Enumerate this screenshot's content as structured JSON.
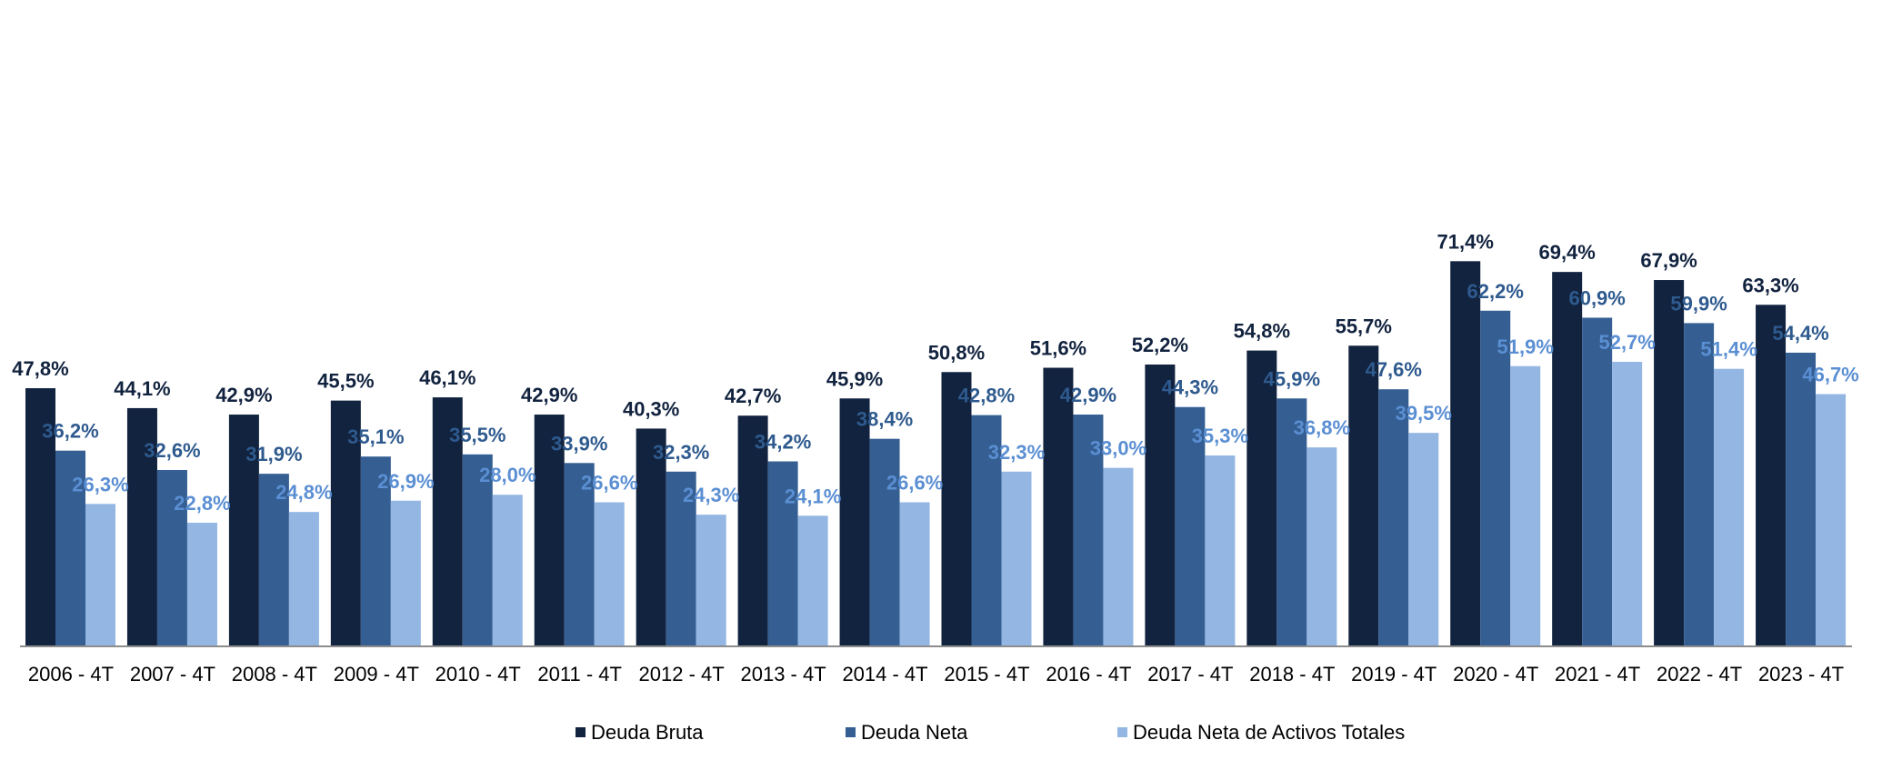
{
  "chart_data": {
    "type": "bar",
    "title": "",
    "xlabel": "",
    "ylabel": "",
    "ylim": [
      0,
      75
    ],
    "grid": false,
    "legend_position": "bottom",
    "categories": [
      "2006 - 4T",
      "2007 - 4T",
      "2008 - 4T",
      "2009 - 4T",
      "2010 - 4T",
      "2011 - 4T",
      "2012 - 4T",
      "2013 - 4T",
      "2014 - 4T",
      "2015 - 4T",
      "2016 - 4T",
      "2017 - 4T",
      "2018 - 4T",
      "2019 - 4T",
      "2020 - 4T",
      "2021 - 4T",
      "2022 - 4T",
      "2023 - 4T"
    ],
    "series": [
      {
        "name": "Deuda Bruta",
        "color": "#12233F",
        "label_color": "#12233F",
        "values": [
          47.8,
          44.1,
          42.9,
          45.5,
          46.1,
          42.9,
          40.3,
          42.7,
          45.9,
          50.8,
          51.6,
          52.2,
          54.8,
          55.7,
          71.4,
          69.4,
          67.9,
          63.3
        ],
        "labels": [
          "47,8%",
          "44,1%",
          "42,9%",
          "45,5%",
          "46,1%",
          "42,9%",
          "40,3%",
          "42,7%",
          "45,9%",
          "50,8%",
          "51,6%",
          "52,2%",
          "54,8%",
          "55,7%",
          "71,4%",
          "69,4%",
          "67,9%",
          "63,3%"
        ]
      },
      {
        "name": "Deuda Neta",
        "color": "#355F93",
        "label_color": "#2E5A8E",
        "values": [
          36.2,
          32.6,
          31.9,
          35.1,
          35.5,
          33.9,
          32.3,
          34.2,
          38.4,
          42.8,
          42.9,
          44.3,
          45.9,
          47.6,
          62.2,
          60.9,
          59.9,
          54.4
        ],
        "labels": [
          "36,2%",
          "32,6%",
          "31,9%",
          "35,1%",
          "35,5%",
          "33,9%",
          "32,3%",
          "34,2%",
          "38,4%",
          "42,8%",
          "42,9%",
          "44,3%",
          "45,9%",
          "47,6%",
          "62,2%",
          "60,9%",
          "59,9%",
          "54,4%"
        ]
      },
      {
        "name": "Deuda Neta de Activos Totales",
        "color": "#93B6E3",
        "label_color": "#5B8FD3",
        "values": [
          26.3,
          22.8,
          24.8,
          26.9,
          28.0,
          26.6,
          24.3,
          24.1,
          26.6,
          32.3,
          33.0,
          35.3,
          36.8,
          39.5,
          51.9,
          52.7,
          51.4,
          46.7
        ],
        "labels": [
          "26,3%",
          "22,8%",
          "24,8%",
          "26,9%",
          "28,0%",
          "26,6%",
          "24,3%",
          "24,1%",
          "26,6%",
          "32,3%",
          "33,0%",
          "35,3%",
          "36,8%",
          "39,5%",
          "51,9%",
          "52,7%",
          "51,4%",
          "46,7%"
        ]
      }
    ]
  }
}
